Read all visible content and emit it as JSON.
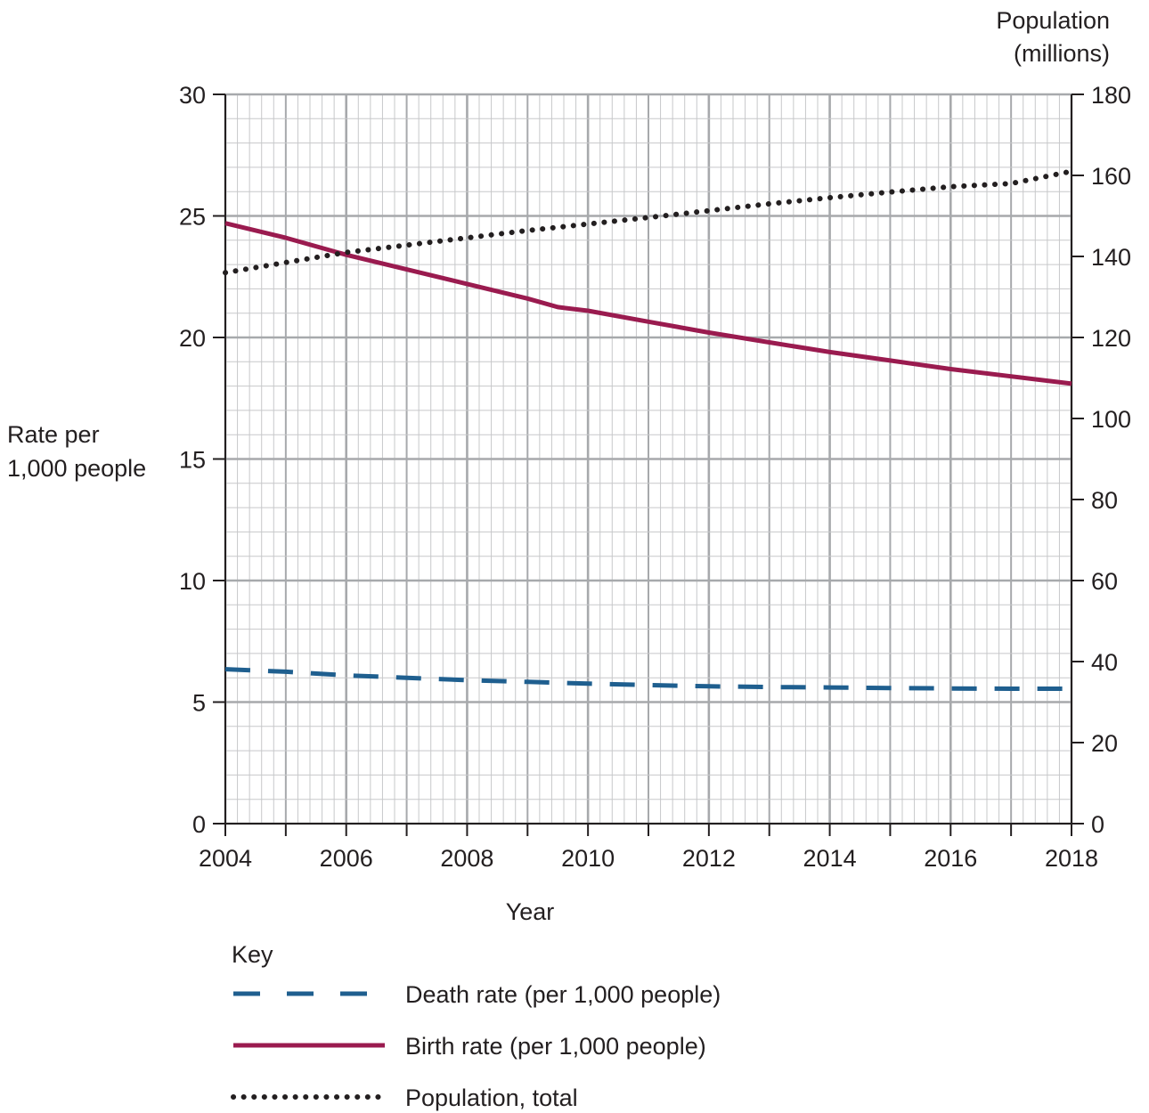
{
  "chart_data": {
    "type": "line",
    "x_label": "Year",
    "y_left_label_lines": [
      "Rate per",
      "1,000 people"
    ],
    "y_right_label_lines": [
      "Population",
      "(millions)"
    ],
    "x_range": [
      2004,
      2018
    ],
    "y_left_range": [
      0,
      30
    ],
    "y_right_range": [
      0,
      180
    ],
    "x_ticks": [
      2004,
      2006,
      2008,
      2010,
      2012,
      2014,
      2016,
      2018
    ],
    "y_left_ticks": [
      0,
      5,
      10,
      15,
      20,
      25,
      30
    ],
    "y_right_ticks": [
      0,
      20,
      40,
      60,
      80,
      100,
      120,
      140,
      160,
      180
    ],
    "grid": true,
    "legend_title": "Key",
    "legend_position": "bottom",
    "series": [
      {
        "name": "Death rate (per 1,000 people)",
        "style": "dashed",
        "axis": "left",
        "color": "#1f5f8f",
        "x": [
          2004,
          2005,
          2006,
          2007,
          2008,
          2009,
          2010,
          2011,
          2012,
          2013,
          2014,
          2015,
          2016,
          2017,
          2018
        ],
        "y": [
          6.35,
          6.25,
          6.1,
          6.0,
          5.9,
          5.83,
          5.76,
          5.7,
          5.65,
          5.62,
          5.6,
          5.58,
          5.56,
          5.55,
          5.55
        ]
      },
      {
        "name": "Birth rate (per 1,000 people)",
        "style": "solid",
        "axis": "left",
        "color": "#9a1b4f",
        "x": [
          2004,
          2005,
          2006,
          2007,
          2008,
          2009,
          2009.5,
          2010,
          2011,
          2012,
          2013,
          2014,
          2015,
          2016,
          2017,
          2018
        ],
        "y": [
          24.7,
          24.1,
          23.4,
          22.8,
          22.2,
          21.6,
          21.25,
          21.1,
          20.65,
          20.2,
          19.8,
          19.4,
          19.05,
          18.7,
          18.4,
          18.1
        ]
      },
      {
        "name": "Population, total",
        "style": "dotted",
        "axis": "right",
        "color": "#231f20",
        "x": [
          2004,
          2005,
          2006,
          2007,
          2008,
          2009,
          2010,
          2011,
          2012,
          2013,
          2014,
          2015,
          2016,
          2017,
          2018
        ],
        "y": [
          136,
          138.5,
          141,
          142.8,
          144.6,
          146.4,
          148,
          149.6,
          151.3,
          153,
          154.5,
          155.9,
          157.2,
          158,
          161
        ]
      }
    ]
  }
}
